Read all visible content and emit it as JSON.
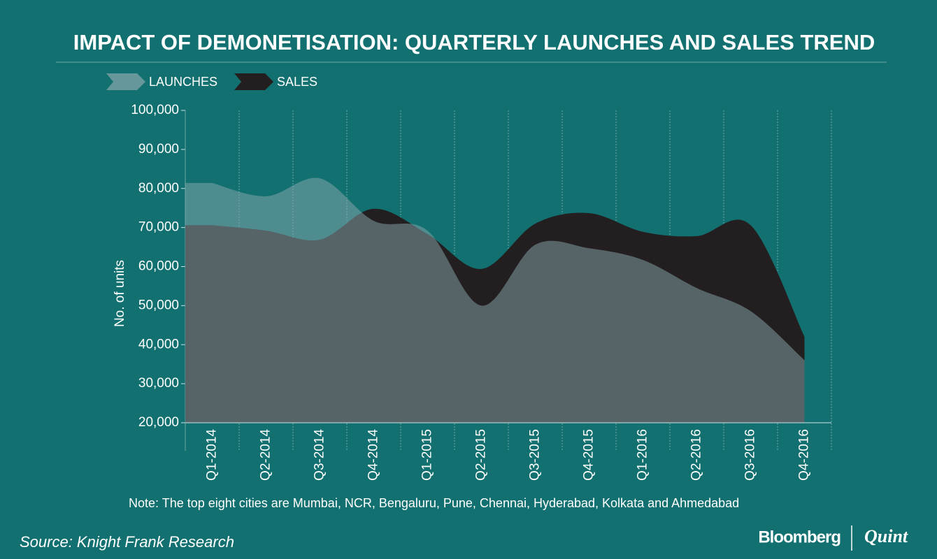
{
  "chart_data": {
    "type": "area",
    "title": "IMPACT OF DEMONETISATION: QUARTERLY LAUNCHES AND SALES TREND",
    "y_label": "No. of units",
    "categories": [
      "Q1-2014",
      "Q2-2014",
      "Q3-2014",
      "Q4-2014",
      "Q1-2015",
      "Q2-2015",
      "Q3-2015",
      "Q4-2015",
      "Q1-2016",
      "Q2-2016",
      "Q3-2016",
      "Q4-2016"
    ],
    "series": [
      {
        "name": "SALES",
        "color": "#231f20",
        "values": [
          70600,
          69200,
          66900,
          74800,
          68300,
          59400,
          71000,
          73700,
          68900,
          67800,
          70600,
          42000
        ]
      },
      {
        "name": "LAUNCHES",
        "color": "#8aa8ad",
        "values": [
          81400,
          78000,
          82600,
          71700,
          69200,
          50000,
          65600,
          64700,
          61700,
          54500,
          48600,
          36000
        ]
      }
    ],
    "ylim": [
      20000,
      100000
    ],
    "yticks": [
      {
        "value": 20000,
        "label": "20,000"
      },
      {
        "value": 30000,
        "label": "30,000"
      },
      {
        "value": 40000,
        "label": "40,000"
      },
      {
        "value": 50000,
        "label": "50,000"
      },
      {
        "value": 60000,
        "label": "60,000"
      },
      {
        "value": 70000,
        "label": "70,000"
      },
      {
        "value": 80000,
        "label": "80,000"
      },
      {
        "value": 90000,
        "label": "90,000"
      },
      {
        "value": 100000,
        "label": "100,000"
      }
    ],
    "grid": true,
    "note": "Note: The top eight cities are Mumbai, NCR, Bengaluru, Pune, Chennai, Hyderabad, Kolkata and Ahmedabad",
    "source": "Source: Knight Frank Research",
    "brand": [
      "Bloomberg",
      "Quint"
    ]
  }
}
